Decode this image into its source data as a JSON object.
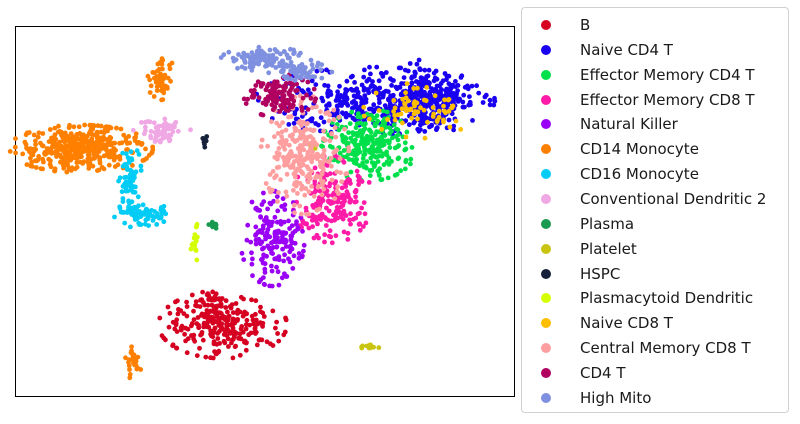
{
  "chart_data": {
    "type": "scatter",
    "title": "",
    "xlabel": "",
    "ylabel": "",
    "xlim": [
      0,
      20
    ],
    "ylim": [
      0,
      15
    ],
    "axes_ticks": false,
    "grid": false,
    "legend_placement": "outside-right",
    "series": [
      {
        "name": "B",
        "color": "#d60021",
        "clusters": [
          [
            8.3,
            2.9,
            1.6,
            0.85,
            260
          ],
          [
            7.8,
            3.8,
            0.4,
            0.3,
            30
          ]
        ]
      },
      {
        "name": "Naive CD4 T",
        "color": "#1a00f0",
        "clusters": [
          [
            14.4,
            12.0,
            3.0,
            0.85,
            420
          ],
          [
            16.6,
            12.1,
            1.0,
            1.0,
            200
          ]
        ]
      },
      {
        "name": "Effector Memory CD4 T",
        "color": "#00e04a",
        "clusters": [
          [
            14.2,
            10.2,
            1.2,
            0.9,
            260
          ]
        ]
      },
      {
        "name": "Effector Memory CD8 T",
        "color": "#ff1aa8",
        "clusters": [
          [
            12.7,
            8.0,
            1.0,
            1.1,
            200
          ]
        ]
      },
      {
        "name": "Natural Killer",
        "color": "#9900f5",
        "clusters": [
          [
            10.3,
            6.4,
            0.8,
            1.2,
            180
          ]
        ]
      },
      {
        "name": "CD14 Monocyte",
        "color": "#ff8000",
        "clusters": [
          [
            2.6,
            10.05,
            1.8,
            0.6,
            380
          ],
          [
            5.8,
            13.0,
            0.35,
            0.6,
            50
          ],
          [
            4.7,
            1.3,
            0.2,
            0.45,
            25
          ]
        ]
      },
      {
        "name": "CD16 Monocyte",
        "color": "#00ccf5",
        "clusters": [
          [
            4.6,
            8.9,
            0.3,
            0.8,
            60
          ],
          [
            5.0,
            7.4,
            0.7,
            0.35,
            80
          ]
        ]
      },
      {
        "name": "Conventional Dendritic 2",
        "color": "#f0a8e4",
        "clusters": [
          [
            6.0,
            10.8,
            0.8,
            0.3,
            60
          ]
        ]
      },
      {
        "name": "Plasma",
        "color": "#1a9a50",
        "clusters": [
          [
            7.9,
            6.95,
            0.15,
            0.1,
            10
          ]
        ]
      },
      {
        "name": "Platelet",
        "color": "#c8c410",
        "clusters": [
          [
            14.1,
            2.0,
            0.3,
            0.1,
            12
          ],
          [
            11.9,
            10.2,
            0.15,
            0.1,
            6
          ]
        ]
      },
      {
        "name": "HSPC",
        "color": "#16213a",
        "clusters": [
          [
            7.6,
            10.4,
            0.1,
            0.2,
            10
          ]
        ]
      },
      {
        "name": "Plasmacytoid Dendritic",
        "color": "#d4ff00",
        "clusters": [
          [
            7.2,
            6.3,
            0.12,
            0.5,
            20
          ]
        ]
      },
      {
        "name": "Naive CD8 T",
        "color": "#ffbe00",
        "clusters": [
          [
            16.2,
            11.6,
            1.4,
            0.7,
            70
          ]
        ]
      },
      {
        "name": "Central Memory CD8 T",
        "color": "#ff9e9e",
        "clusters": [
          [
            11.6,
            9.8,
            1.1,
            1.5,
            260
          ]
        ]
      },
      {
        "name": "CD4 T",
        "color": "#b00060",
        "clusters": [
          [
            10.6,
            12.2,
            0.9,
            0.55,
            120
          ]
        ]
      },
      {
        "name": "High Mito",
        "color": "#7f90e0",
        "clusters": [
          [
            10.0,
            13.7,
            1.1,
            0.3,
            110
          ],
          [
            11.4,
            13.2,
            0.8,
            0.3,
            60
          ]
        ]
      }
    ]
  }
}
